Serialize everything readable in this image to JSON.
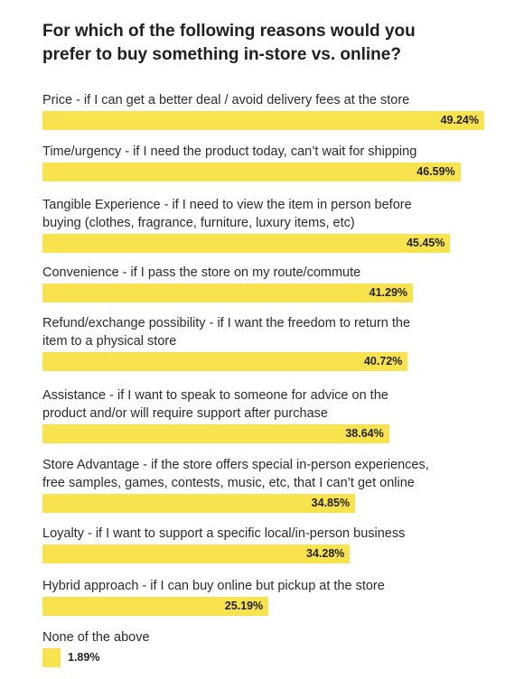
{
  "title_lines": [
    "For which of the following reasons would you",
    "prefer to buy something in-store vs. online?"
  ],
  "chart_data": {
    "type": "bar",
    "orientation": "horizontal",
    "title": "For which of the following reasons would you prefer to buy something in-store vs. online?",
    "bar_color": "#f8e34f",
    "xlim": [
      0,
      55
    ],
    "unit": "%",
    "categories": [
      "Price - if I can get a better deal / avoid delivery fees at the store",
      "Time/urgency - if I need the product today, can’t wait for shipping",
      "Tangible Experience - if I need to view the item in person before\nbuying (clothes, fragrance, furniture, luxury items, etc)",
      "Convenience - if I pass the store on my route/commute",
      "Refund/exchange possibility - if I want the freedom to return the\nitem to a physical store",
      "Assistance - if I want to speak to someone for advice on the\nproduct and/or will require support after purchase",
      "Store Advantage - if the store offers special in-person experiences,\nfree samples, games, contests, music, etc, that I can’t get online",
      "Loyalty - if I want to support a specific local/in-person business",
      "Hybrid approach - if I can buy online but pickup at the store",
      "None of the above"
    ],
    "values": [
      49.24,
      46.59,
      45.45,
      41.29,
      40.72,
      38.64,
      34.85,
      34.28,
      25.19,
      1.89
    ],
    "value_labels": [
      "49.24%",
      "46.59%",
      "45.45%",
      "41.29%",
      "40.72%",
      "38.64%",
      "34.85%",
      "34.28%",
      "25.19%",
      "1.89%"
    ]
  }
}
